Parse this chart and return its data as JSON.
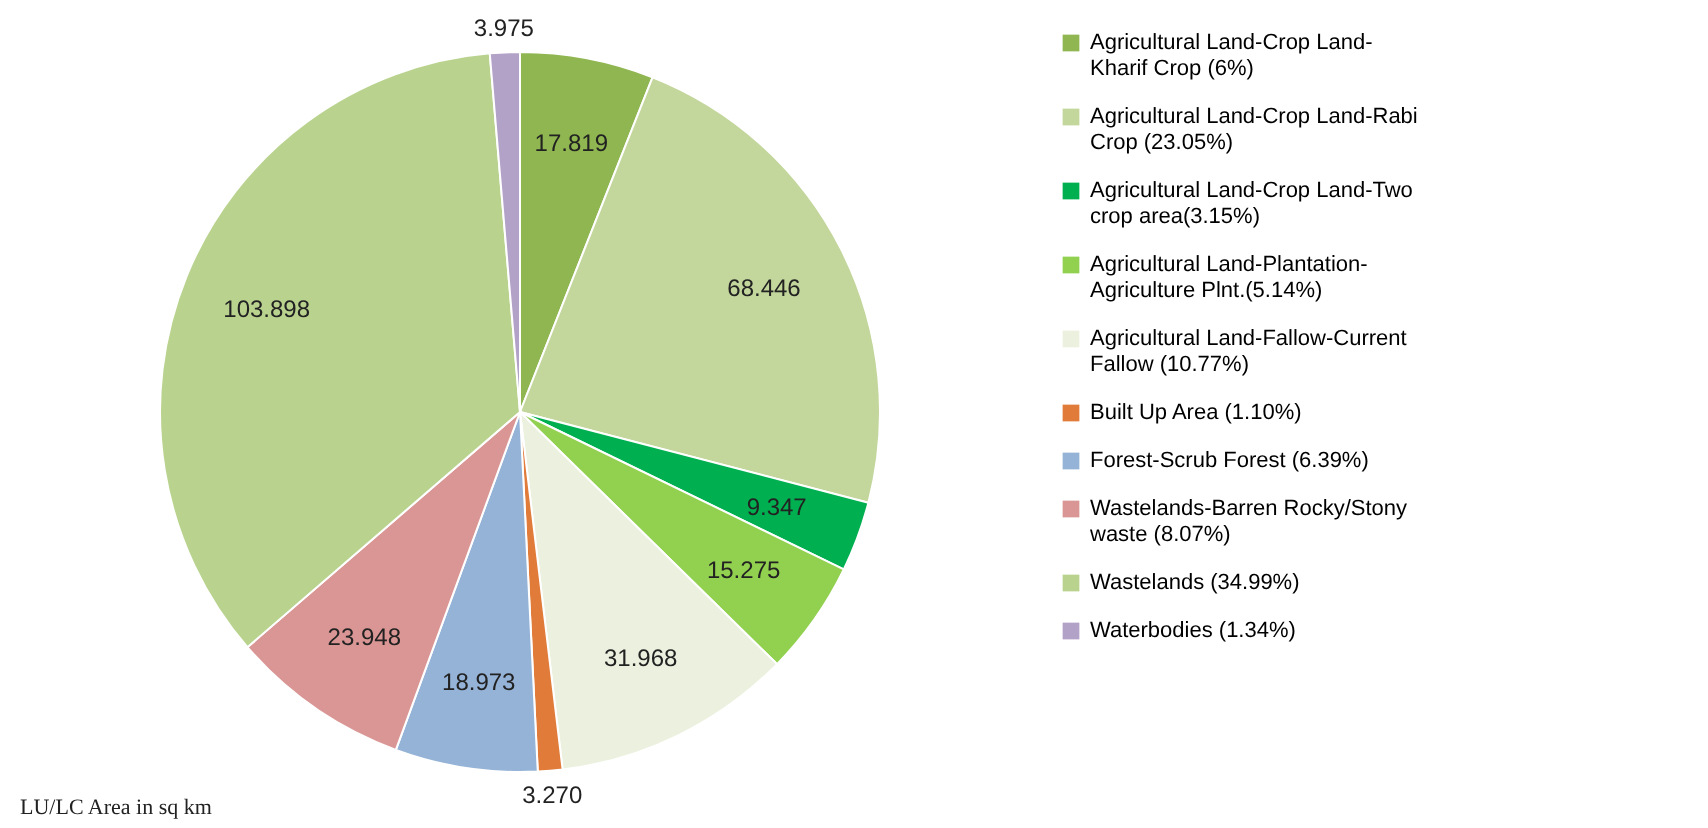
{
  "chart_data": {
    "type": "pie",
    "categories": [
      "Agricultural Land-Crop Land-Kharif Crop (6%)",
      "Agricultural Land-Crop Land-Rabi Crop (23.05%)",
      "Agricultural Land-Crop Land-Two crop area(3.15%)",
      "Agricultural Land-Plantation-Agriculture Plnt.(5.14%)",
      "Agricultural Land-Fallow-Current Fallow (10.77%)",
      "Built Up Area (1.10%)",
      "Forest-Scrub Forest (6.39%)",
      "Wastelands-Barren Rocky/Stony waste (8.07%)",
      "Wastelands (34.99%)",
      "Waterbodies (1.34%)"
    ],
    "values": [
      17.819,
      68.446,
      9.347,
      15.275,
      31.968,
      3.27,
      18.973,
      23.948,
      103.898,
      3.975
    ],
    "value_labels": [
      "17.819",
      "68.446",
      "9.347",
      "15.275",
      "31.968",
      "3.270",
      "18.973",
      "23.948",
      "103.898",
      "3.975"
    ],
    "colors": [
      "#8fb650",
      "#c3d69b",
      "#00b050",
      "#92d050",
      "#ebf1de",
      "#e07b39",
      "#95b3d7",
      "#d99694",
      "#b9d38f",
      "#b3a2c7"
    ],
    "legend": "right",
    "annotations": [
      "LU/LC Area in sq km"
    ]
  }
}
